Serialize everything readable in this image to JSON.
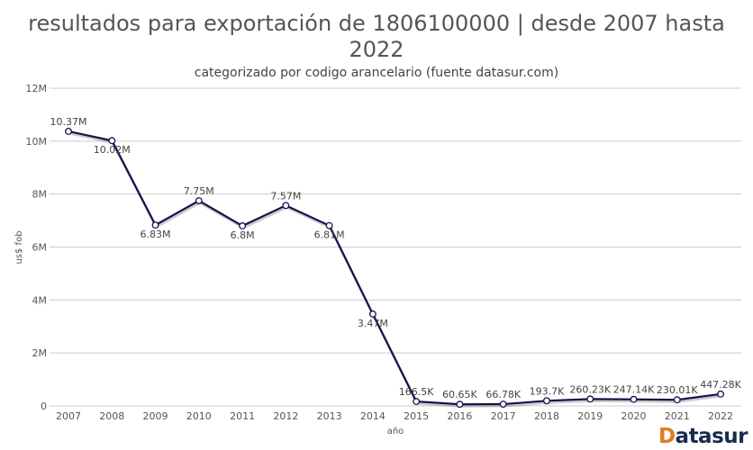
{
  "title_line1": "resultados para exportación de 1806100000 | desde 2007 hasta",
  "title_line2": "2022",
  "subtitle": "categorizado por codigo arancelario (fuente datasur.com)",
  "logo": {
    "first": "D",
    "rest": "atasur"
  },
  "colors": {
    "line": "#14144f",
    "grid": "#cccccc",
    "logo_accent": "#e07b20"
  },
  "chart_data": {
    "type": "line",
    "xlabel": "año",
    "ylabel": "us$ fob",
    "ylim": [
      0,
      12000000
    ],
    "yticks": [
      0,
      2000000,
      4000000,
      6000000,
      8000000,
      10000000,
      12000000
    ],
    "ytick_labels": [
      "0",
      "2M",
      "4M",
      "6M",
      "8M",
      "10M",
      "12M"
    ],
    "grid": true,
    "categories": [
      "2007",
      "2008",
      "2009",
      "2010",
      "2011",
      "2012",
      "2013",
      "2014",
      "2015",
      "2016",
      "2017",
      "2018",
      "2019",
      "2020",
      "2021",
      "2022"
    ],
    "values": [
      10370000,
      10020000,
      6830000,
      7750000,
      6800000,
      7570000,
      6810000,
      3470000,
      166500,
      60650,
      66780,
      193700,
      260230,
      247140,
      230010,
      447280
    ],
    "data_labels": [
      "10.37M",
      "10.02M",
      "6.83M",
      "7.75M",
      "6.8M",
      "7.57M",
      "6.81M",
      "3.47M",
      "166.5K",
      "60.65K",
      "66.78K",
      "193.7K",
      "260.23K",
      "247.14K",
      "230.01K",
      "447.28K"
    ]
  }
}
